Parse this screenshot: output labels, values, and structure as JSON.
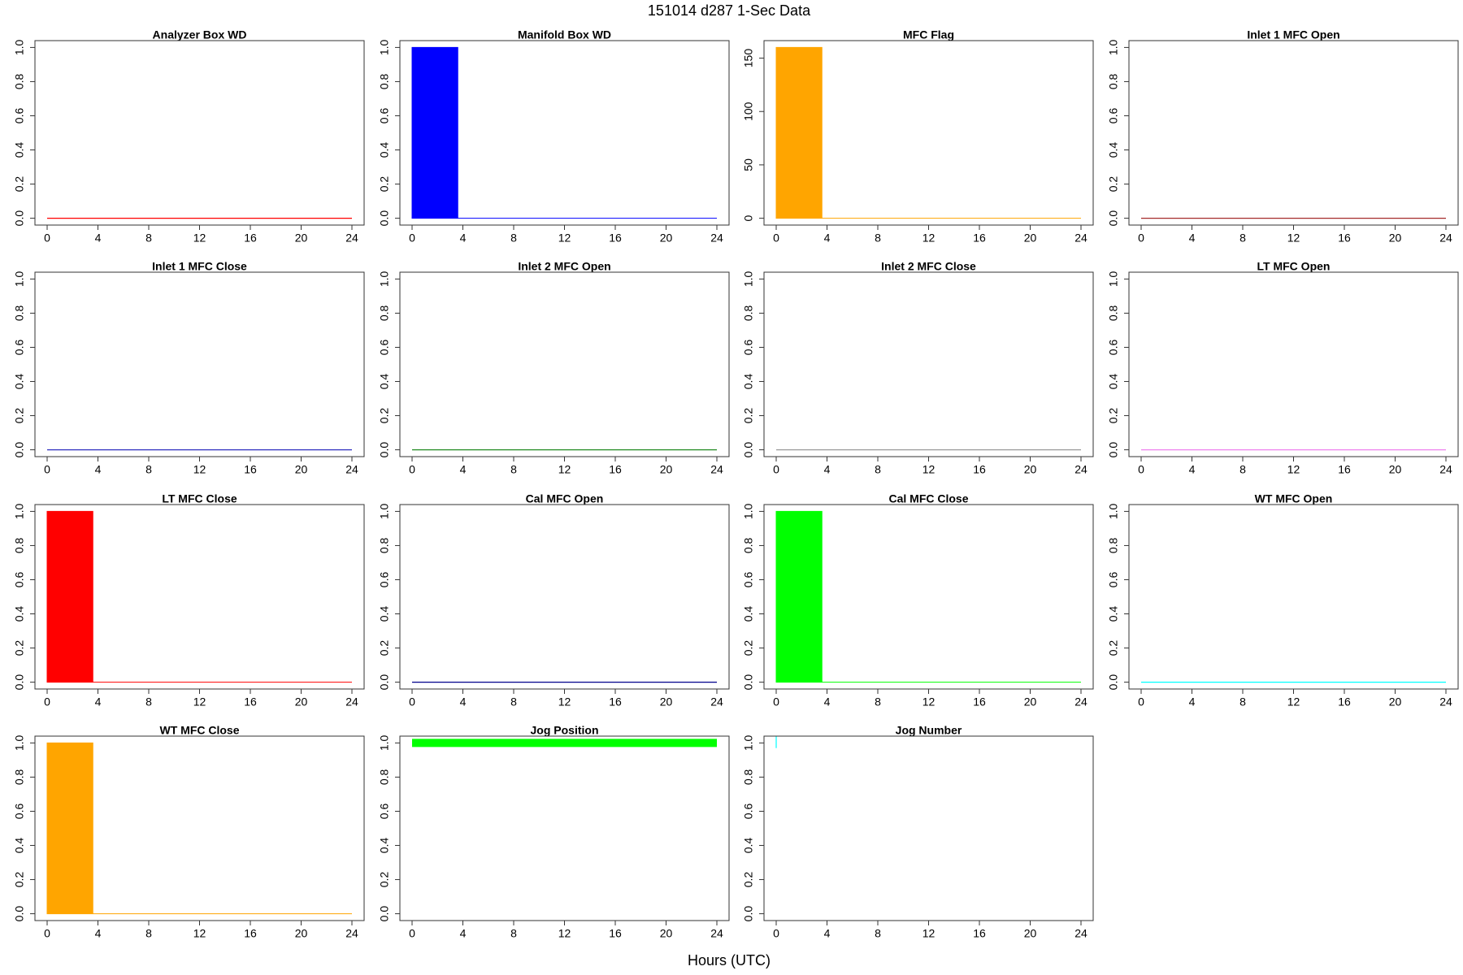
{
  "title": "151014   d287   1-Sec Data",
  "xlabel": "Hours (UTC)",
  "chart_data": [
    {
      "type": "line",
      "title": "Analyzer Box WD",
      "x": [
        0,
        24
      ],
      "values": [
        0,
        0
      ],
      "color": "#ff0000",
      "xlim": [
        -0.96,
        24.96
      ],
      "ylim": [
        -0.04,
        1.04
      ],
      "xticks": [
        0,
        4,
        8,
        12,
        16,
        20,
        24
      ],
      "yticks": [
        {
          "value": 0,
          "label": "0.0"
        },
        0.2,
        0.4,
        0.6,
        0.8,
        {
          "value": 1,
          "label": "1.0"
        }
      ]
    },
    {
      "type": "area",
      "title": "Manifold Box WD",
      "x": [
        0,
        3.6,
        3.6,
        24
      ],
      "values": [
        1,
        1,
        0,
        0
      ],
      "color": "#0000ff",
      "xlim": [
        -0.96,
        24.96
      ],
      "ylim": [
        -0.04,
        1.04
      ],
      "xticks": [
        0,
        4,
        8,
        12,
        16,
        20,
        24
      ],
      "yticks": [
        {
          "value": 0,
          "label": "0.0"
        },
        0.2,
        0.4,
        0.6,
        0.8,
        {
          "value": 1,
          "label": "1.0"
        }
      ]
    },
    {
      "type": "area",
      "title": "MFC Flag",
      "x": [
        0,
        3.6,
        3.6,
        24
      ],
      "values": [
        160,
        160,
        0,
        0
      ],
      "color": "#ffa500",
      "xlim": [
        -0.96,
        24.96
      ],
      "ylim": [
        -6.4,
        166.4
      ],
      "xticks": [
        0,
        4,
        8,
        12,
        16,
        20,
        24
      ],
      "yticks": [
        0,
        50,
        100,
        150
      ]
    },
    {
      "type": "line",
      "title": "Inlet 1 MFC Open",
      "x": [
        0,
        24
      ],
      "values": [
        0,
        0
      ],
      "color": "#a52a2a",
      "xlim": [
        -0.96,
        24.96
      ],
      "ylim": [
        -0.04,
        1.04
      ],
      "xticks": [
        0,
        4,
        8,
        12,
        16,
        20,
        24
      ],
      "yticks": [
        {
          "value": 0,
          "label": "0.0"
        },
        0.2,
        0.4,
        0.6,
        0.8,
        {
          "value": 1,
          "label": "1.0"
        }
      ]
    },
    {
      "type": "line",
      "title": "Inlet 1 MFC Close",
      "x": [
        0,
        24
      ],
      "values": [
        0,
        0
      ],
      "color": "#3030c0",
      "xlim": [
        -0.96,
        24.96
      ],
      "ylim": [
        -0.04,
        1.04
      ],
      "xticks": [
        0,
        4,
        8,
        12,
        16,
        20,
        24
      ],
      "yticks": [
        {
          "value": 0,
          "label": "0.0"
        },
        0.2,
        0.4,
        0.6,
        0.8,
        {
          "value": 1,
          "label": "1.0"
        }
      ]
    },
    {
      "type": "line",
      "title": "Inlet 2 MFC Open",
      "x": [
        0,
        24
      ],
      "values": [
        0,
        0
      ],
      "color": "#228b22",
      "xlim": [
        -0.96,
        24.96
      ],
      "ylim": [
        -0.04,
        1.04
      ],
      "xticks": [
        0,
        4,
        8,
        12,
        16,
        20,
        24
      ],
      "yticks": [
        {
          "value": 0,
          "label": "0.0"
        },
        0.2,
        0.4,
        0.6,
        0.8,
        {
          "value": 1,
          "label": "1.0"
        }
      ]
    },
    {
      "type": "line",
      "title": "Inlet 2 MFC Close",
      "x": [
        0,
        24
      ],
      "values": [
        0,
        0
      ],
      "color": "#999999",
      "xlim": [
        -0.96,
        24.96
      ],
      "ylim": [
        -0.04,
        1.04
      ],
      "xticks": [
        0,
        4,
        8,
        12,
        16,
        20,
        24
      ],
      "yticks": [
        {
          "value": 0,
          "label": "0.0"
        },
        0.2,
        0.4,
        0.6,
        0.8,
        {
          "value": 1,
          "label": "1.0"
        }
      ]
    },
    {
      "type": "line",
      "title": "LT MFC Open",
      "x": [
        0,
        24
      ],
      "values": [
        0,
        0
      ],
      "color": "#ee82ee",
      "xlim": [
        -0.96,
        24.96
      ],
      "ylim": [
        -0.04,
        1.04
      ],
      "xticks": [
        0,
        4,
        8,
        12,
        16,
        20,
        24
      ],
      "yticks": [
        {
          "value": 0,
          "label": "0.0"
        },
        0.2,
        0.4,
        0.6,
        0.8,
        {
          "value": 1,
          "label": "1.0"
        }
      ]
    },
    {
      "type": "area",
      "title": "LT MFC Close",
      "x": [
        0,
        3.6,
        3.6,
        24
      ],
      "values": [
        1,
        1,
        0,
        0
      ],
      "color": "#ff0000",
      "xlim": [
        -0.96,
        24.96
      ],
      "ylim": [
        -0.04,
        1.04
      ],
      "xticks": [
        0,
        4,
        8,
        12,
        16,
        20,
        24
      ],
      "yticks": [
        {
          "value": 0,
          "label": "0.0"
        },
        0.2,
        0.4,
        0.6,
        0.8,
        {
          "value": 1,
          "label": "1.0"
        }
      ]
    },
    {
      "type": "line",
      "title": "Cal MFC Open",
      "x": [
        0,
        24
      ],
      "values": [
        0,
        0
      ],
      "color": "#00008b",
      "xlim": [
        -0.96,
        24.96
      ],
      "ylim": [
        -0.04,
        1.04
      ],
      "xticks": [
        0,
        4,
        8,
        12,
        16,
        20,
        24
      ],
      "yticks": [
        {
          "value": 0,
          "label": "0.0"
        },
        0.2,
        0.4,
        0.6,
        0.8,
        {
          "value": 1,
          "label": "1.0"
        }
      ]
    },
    {
      "type": "area",
      "title": "Cal MFC Close",
      "x": [
        0,
        3.6,
        3.6,
        24
      ],
      "values": [
        1,
        1,
        0,
        0
      ],
      "color": "#00ff00",
      "xlim": [
        -0.96,
        24.96
      ],
      "ylim": [
        -0.04,
        1.04
      ],
      "xticks": [
        0,
        4,
        8,
        12,
        16,
        20,
        24
      ],
      "yticks": [
        {
          "value": 0,
          "label": "0.0"
        },
        0.2,
        0.4,
        0.6,
        0.8,
        {
          "value": 1,
          "label": "1.0"
        }
      ]
    },
    {
      "type": "line",
      "title": "WT MFC Open",
      "x": [
        0,
        24
      ],
      "values": [
        0,
        0
      ],
      "color": "#00ffff",
      "xlim": [
        -0.96,
        24.96
      ],
      "ylim": [
        -0.04,
        1.04
      ],
      "xticks": [
        0,
        4,
        8,
        12,
        16,
        20,
        24
      ],
      "yticks": [
        {
          "value": 0,
          "label": "0.0"
        },
        0.2,
        0.4,
        0.6,
        0.8,
        {
          "value": 1,
          "label": "1.0"
        }
      ]
    },
    {
      "type": "area",
      "title": "WT MFC Close",
      "x": [
        0,
        3.6,
        3.6,
        24
      ],
      "values": [
        1,
        1,
        0,
        0
      ],
      "color": "#ffa500",
      "xlim": [
        -0.96,
        24.96
      ],
      "ylim": [
        -0.04,
        1.04
      ],
      "xticks": [
        0,
        4,
        8,
        12,
        16,
        20,
        24
      ],
      "yticks": [
        {
          "value": 0,
          "label": "0.0"
        },
        0.2,
        0.4,
        0.6,
        0.8,
        {
          "value": 1,
          "label": "1.0"
        }
      ]
    },
    {
      "type": "line",
      "title": "Jog Position",
      "x": [
        0,
        24
      ],
      "values": [
        1,
        1
      ],
      "color": "#00ff00",
      "linewidth": 10,
      "xlim": [
        -0.96,
        24.96
      ],
      "ylim": [
        -0.04,
        1.04
      ],
      "xticks": [
        0,
        4,
        8,
        12,
        16,
        20,
        24
      ],
      "yticks": [
        {
          "value": 0,
          "label": "0.0"
        },
        0.2,
        0.4,
        0.6,
        0.8,
        {
          "value": 1,
          "label": "1.0"
        }
      ]
    },
    {
      "type": "line",
      "title": "Jog Number",
      "x": [
        0,
        0
      ],
      "values": [
        0.97,
        1.04
      ],
      "color": "#00ffff",
      "xlim": [
        -0.96,
        24.96
      ],
      "ylim": [
        -0.04,
        1.04
      ],
      "xticks": [
        0,
        4,
        8,
        12,
        16,
        20,
        24
      ],
      "yticks": [
        {
          "value": 0,
          "label": "0.0"
        },
        0.2,
        0.4,
        0.6,
        0.8,
        {
          "value": 1,
          "label": "1.0"
        }
      ]
    }
  ]
}
